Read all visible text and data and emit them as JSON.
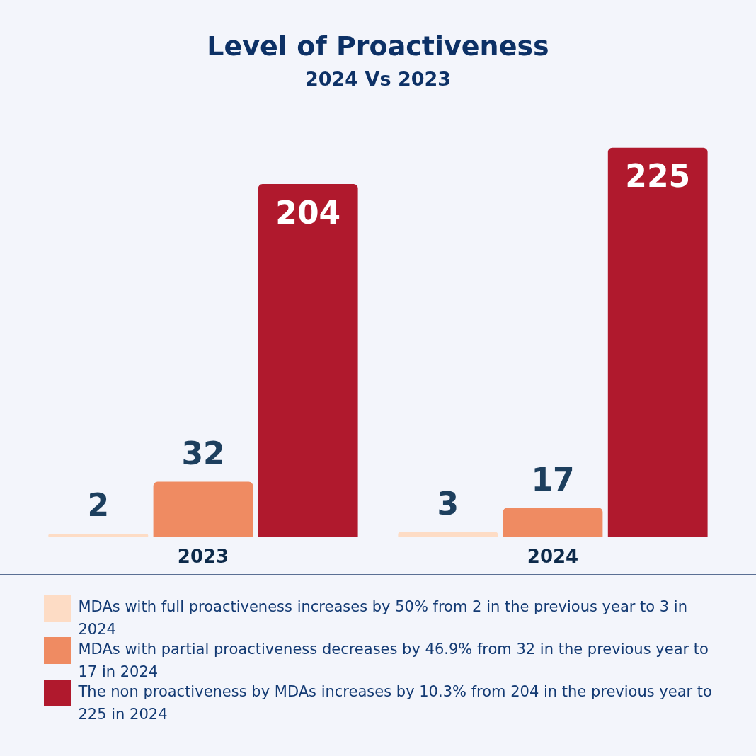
{
  "chart_data": {
    "type": "bar",
    "title": "Level of Proactiveness",
    "subtitle": "2024 Vs 2023",
    "categories": [
      "2023",
      "2024"
    ],
    "series": [
      {
        "name": "MDAs with full proactiveness increases by 50% from 2 in the previous year to 3 in 2024",
        "color": "#fddcc5",
        "values": [
          2,
          3
        ]
      },
      {
        "name": "MDAs with partial proactiveness decreases by 46.9% from 32 in the previous year to 17 in 2024",
        "color": "#ef8b62",
        "values": [
          32,
          17
        ]
      },
      {
        "name": "The non proactiveness by MDAs increases by 10.3% from 204 in the previous year to 225 in 2024",
        "color": "#b0192d",
        "values": [
          204,
          225
        ]
      }
    ],
    "data_labels": true,
    "grid": false,
    "legend": "bottom"
  }
}
